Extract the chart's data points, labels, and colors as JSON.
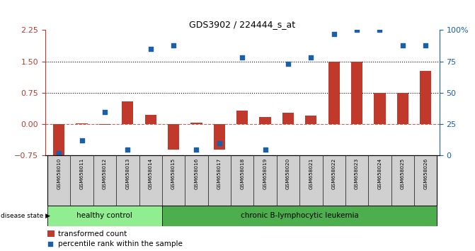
{
  "title": "GDS3902 / 224444_s_at",
  "samples": [
    "GSM658010",
    "GSM658011",
    "GSM658012",
    "GSM658013",
    "GSM658014",
    "GSM658015",
    "GSM658016",
    "GSM658017",
    "GSM658018",
    "GSM658019",
    "GSM658020",
    "GSM658021",
    "GSM658022",
    "GSM658023",
    "GSM658024",
    "GSM658025",
    "GSM658026"
  ],
  "transformed_count": [
    -0.82,
    0.02,
    -0.02,
    0.55,
    0.22,
    -0.6,
    0.03,
    -0.6,
    0.32,
    0.17,
    0.27,
    0.2,
    1.5,
    1.5,
    0.75,
    0.75,
    1.28
  ],
  "percentile_rank": [
    2,
    12,
    35,
    5,
    85,
    88,
    5,
    10,
    78,
    5,
    73,
    78,
    97,
    100,
    100,
    88,
    88
  ],
  "bar_color": "#c0392b",
  "dot_color": "#1a5fa8",
  "ylim_left": [
    -0.75,
    2.25
  ],
  "ylim_right": [
    0,
    100
  ],
  "yticks_left": [
    -0.75,
    0.0,
    0.75,
    1.5,
    2.25
  ],
  "yticks_right": [
    0,
    25,
    50,
    75,
    100
  ],
  "ytick_labels_right": [
    "0",
    "25",
    "50",
    "75",
    "100%"
  ],
  "hlines": [
    0.75,
    1.5
  ],
  "hline_zero": 0.0,
  "group1_label": "healthy control",
  "group2_label": "chronic B-lymphocytic leukemia",
  "group1_count": 5,
  "legend_bar_label": "transformed count",
  "legend_dot_label": "percentile rank within the sample",
  "disease_state_label": "disease state",
  "group1_color": "#90ee90",
  "group2_color": "#4cae4c",
  "xtick_area_color": "#d0d0d0"
}
